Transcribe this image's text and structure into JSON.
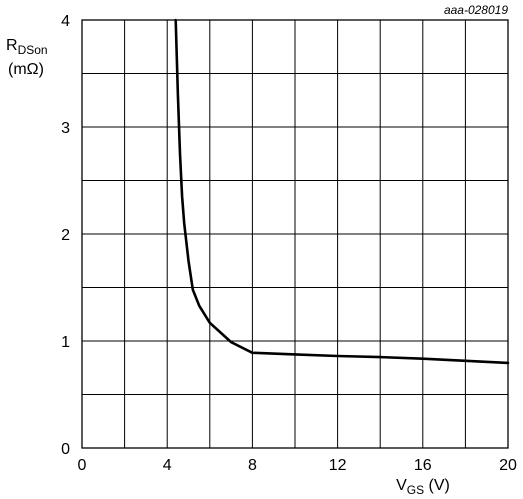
{
  "chart_data": {
    "type": "line",
    "figure_id": "aaa-028019",
    "xlabel": {
      "main": "V",
      "sub": "GS",
      "unit": " (V)"
    },
    "ylabel": {
      "main": "R",
      "sub": "DSon",
      "unit": "(mΩ)"
    },
    "xlim": [
      0,
      20
    ],
    "ylim": [
      0,
      4
    ],
    "x_ticks": [
      0,
      4,
      8,
      12,
      16,
      20
    ],
    "y_ticks": [
      0,
      1,
      2,
      3,
      4
    ],
    "x_grid_step": 2,
    "y_grid_step": 0.5,
    "grid": true,
    "series": [
      {
        "x": [
          4.4,
          4.5,
          4.6,
          4.7,
          4.8,
          5.0,
          5.2,
          5.5,
          6.0,
          7.0,
          8.0,
          10.0,
          12.0,
          14.0,
          16.0,
          18.0,
          20.0
        ],
        "y": [
          4.0,
          3.3,
          2.75,
          2.35,
          2.1,
          1.75,
          1.48,
          1.33,
          1.17,
          0.99,
          0.89,
          0.875,
          0.86,
          0.85,
          0.835,
          0.815,
          0.795
        ]
      }
    ]
  }
}
